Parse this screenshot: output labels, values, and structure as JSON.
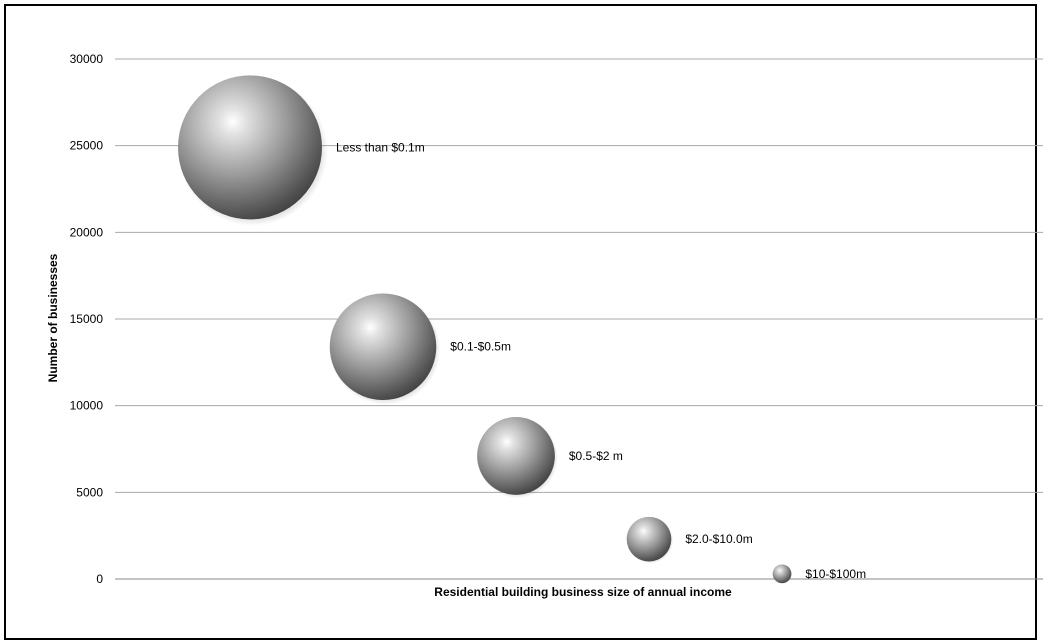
{
  "chart_data": {
    "type": "scatter",
    "xlabel": "Residential building business size of annual income",
    "ylabel": "Number of businesses",
    "ylim": [
      0,
      30000
    ],
    "y_ticks": [
      0,
      5000,
      10000,
      15000,
      20000,
      25000,
      30000
    ],
    "grid": true,
    "points": [
      {
        "label": "Less than $0.1m",
        "x": 1,
        "y": 24900,
        "size": 100
      },
      {
        "label": "$0.1-$0.5m",
        "x": 2,
        "y": 13400,
        "size": 74
      },
      {
        "label": "$0.5-$2 m",
        "x": 3,
        "y": 7100,
        "size": 54
      },
      {
        "label": "$2.0-$10.0m",
        "x": 4,
        "y": 2300,
        "size": 31
      },
      {
        "label": "$10-$100m",
        "x": 5,
        "y": 300,
        "size": 13
      }
    ]
  }
}
